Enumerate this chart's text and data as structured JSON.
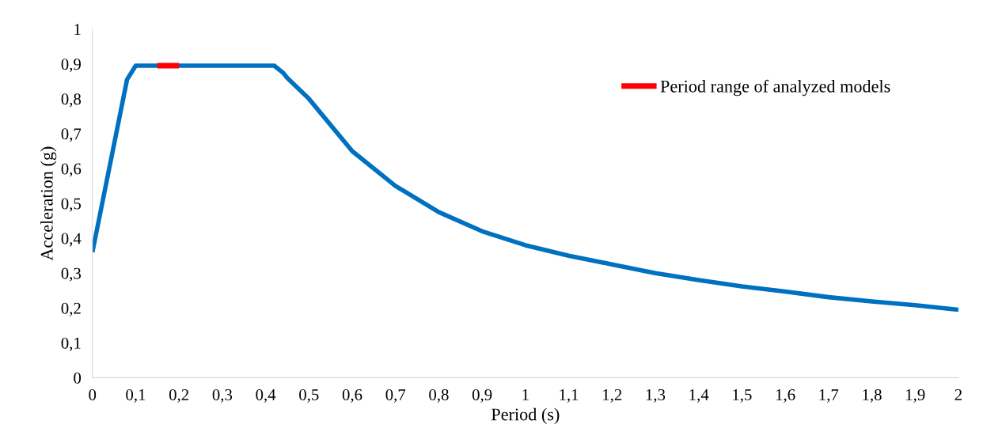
{
  "chart_data": {
    "type": "line",
    "xlabel": "Period (s)",
    "ylabel": "Acceleration (g)",
    "xlim": [
      0,
      2
    ],
    "ylim": [
      0,
      1
    ],
    "xticks": [
      0,
      {
        "value": 0.1,
        "label": "0,1"
      },
      {
        "value": 0.2,
        "label": "0,2"
      },
      {
        "value": 0.3,
        "label": "0,3"
      },
      {
        "value": 0.4,
        "label": "0,4"
      },
      {
        "value": 0.5,
        "label": "0,5"
      },
      {
        "value": 0.6,
        "label": "0,6"
      },
      {
        "value": 0.7,
        "label": "0,7"
      },
      {
        "value": 0.8,
        "label": "0,8"
      },
      {
        "value": 0.9,
        "label": "0,9"
      },
      1,
      {
        "value": 1.1,
        "label": "1,1"
      },
      {
        "value": 1.2,
        "label": "1,2"
      },
      {
        "value": 1.3,
        "label": "1,3"
      },
      {
        "value": 1.4,
        "label": "1,4"
      },
      {
        "value": 1.5,
        "label": "1,5"
      },
      {
        "value": 1.6,
        "label": "1,6"
      },
      {
        "value": 1.7,
        "label": "1,7"
      },
      {
        "value": 1.8,
        "label": "1,8"
      },
      {
        "value": 1.9,
        "label": "1,9"
      },
      2
    ],
    "yticks": [
      0,
      {
        "value": 0.1,
        "label": "0,1"
      },
      {
        "value": 0.2,
        "label": "0,2"
      },
      {
        "value": 0.3,
        "label": "0,3"
      },
      {
        "value": 0.4,
        "label": "0,4"
      },
      {
        "value": 0.5,
        "label": "0,5"
      },
      {
        "value": 0.6,
        "label": "0,6"
      },
      {
        "value": 0.7,
        "label": "0,7"
      },
      {
        "value": 0.8,
        "label": "0,8"
      },
      {
        "value": 0.9,
        "label": "0,9"
      },
      1
    ],
    "grid": false,
    "legend": "top right",
    "marker": "none",
    "line_style": "solid",
    "series": [
      {
        "color": "#0070c0",
        "x": [
          0,
          0.08,
          0.1,
          0.42,
          0.44,
          0.45,
          0.5,
          0.6,
          0.7,
          0.8,
          0.9,
          1.0,
          1.1,
          1.2,
          1.3,
          1.4,
          1.5,
          1.6,
          1.7,
          1.8,
          1.9,
          2.0
        ],
        "values": [
          0.36,
          0.855,
          0.895,
          0.895,
          0.875,
          0.86,
          0.8,
          0.65,
          0.55,
          0.475,
          0.42,
          0.38,
          0.35,
          0.325,
          0.3,
          0.28,
          0.262,
          0.247,
          0.231,
          0.219,
          0.208,
          0.195
        ]
      },
      {
        "name": "Period range of analyzed models",
        "color": "#ff0000",
        "x": [
          0.15,
          0.2
        ],
        "values": [
          0.895,
          0.895
        ]
      }
    ]
  }
}
